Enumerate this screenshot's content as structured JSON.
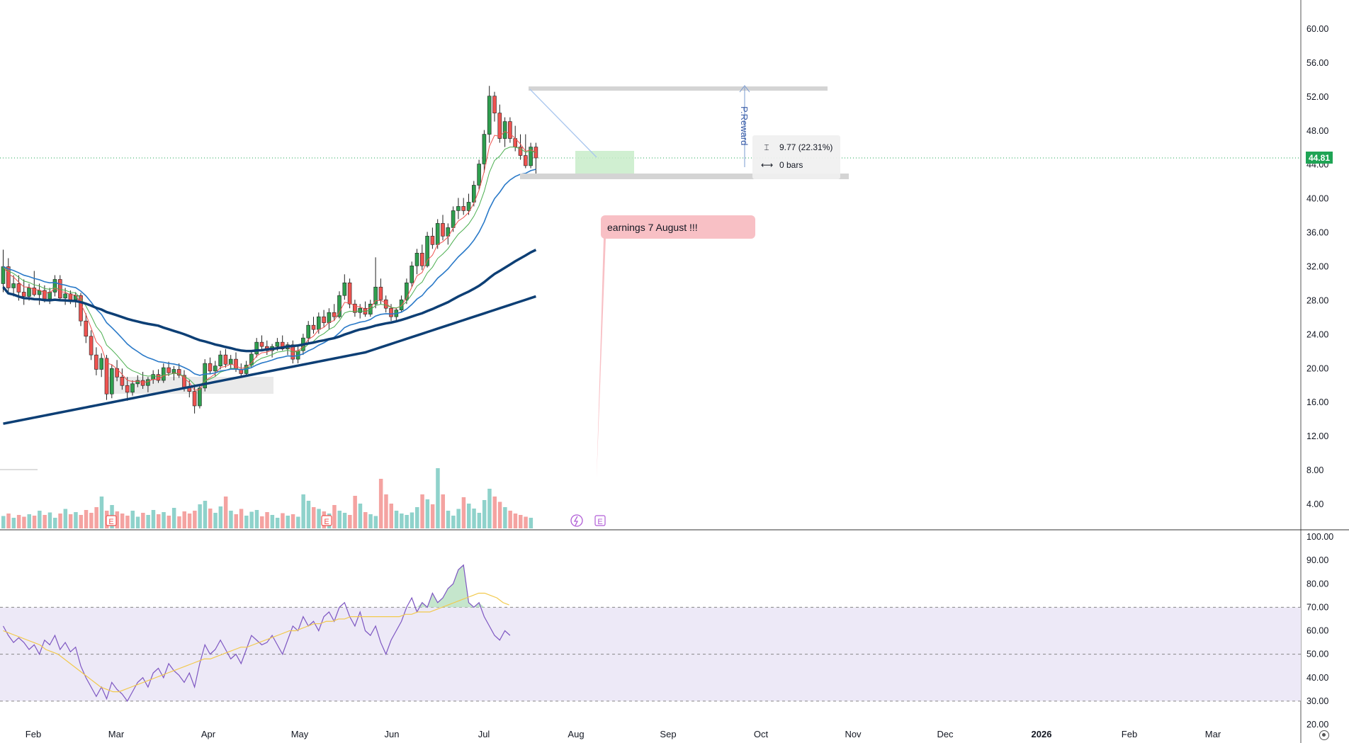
{
  "price_axis": {
    "labels": [
      "60.00",
      "56.00",
      "52.00",
      "48.00",
      "44.00",
      "40.00",
      "36.00",
      "32.00",
      "28.00",
      "24.00",
      "20.00",
      "16.00",
      "12.00",
      "8.00",
      "4.00"
    ],
    "values": [
      60,
      56,
      52,
      48,
      44,
      40,
      36,
      32,
      28,
      24,
      20,
      16,
      12,
      8,
      4
    ]
  },
  "rsi_axis": {
    "labels": [
      "100.00",
      "90.00",
      "80.00",
      "70.00",
      "60.00",
      "50.00",
      "40.00",
      "30.00",
      "20.00"
    ],
    "values": [
      100,
      90,
      80,
      70,
      60,
      50,
      40,
      30,
      20
    ]
  },
  "time_axis": {
    "labels": [
      "Feb",
      "Mar",
      "Apr",
      "May",
      "Jun",
      "Jul",
      "Aug",
      "Sep",
      "Oct",
      "Nov",
      "Dec",
      "2026",
      "Feb",
      "Mar"
    ]
  },
  "last_price": {
    "label": "44.81",
    "value": 44.81,
    "color": "#1fa455"
  },
  "measure_tool": {
    "price_change": "9.77 (22.31%)",
    "bars": "0 bars",
    "price_icon": "price-range-icon",
    "bars_icon": "bar-range-icon"
  },
  "reward_label": "P.Reward",
  "note": {
    "text": "earnings 7 August !!!",
    "color": "#f8c0c5"
  },
  "events": {
    "earnings_marker": "E",
    "dividend_icon": "lightning-icon"
  },
  "colors": {
    "up": "#26a69a",
    "up_body": "#2e9e4e",
    "down": "#ef5350",
    "ema_fast": "#4caf50",
    "ema_mid": "#2979c8",
    "sma50": "#0d3f75",
    "sma200": "#0d3f75",
    "rsi": "#7e57c2",
    "rsi_ma": "#f2c94c",
    "rsi_band": "#ede9f7"
  },
  "chart_data": {
    "type": "candlestick",
    "price_series": [
      {
        "open": 30,
        "high": 34,
        "low": 29,
        "close": 32
      },
      {
        "open": 32,
        "high": 33,
        "low": 29,
        "close": 29.5
      },
      {
        "open": 29.5,
        "high": 31,
        "low": 28.5,
        "close": 30
      },
      {
        "open": 30,
        "high": 31,
        "low": 28,
        "close": 29
      },
      {
        "open": 29,
        "high": 30.5,
        "low": 27.5,
        "close": 28.5
      },
      {
        "open": 28.5,
        "high": 30,
        "low": 28,
        "close": 29.5
      },
      {
        "open": 29.5,
        "high": 31.5,
        "low": 28.5,
        "close": 28.7
      },
      {
        "open": 28.7,
        "high": 30,
        "low": 27.5,
        "close": 29.2
      },
      {
        "open": 29.2,
        "high": 29.8,
        "low": 27.8,
        "close": 28.2
      },
      {
        "open": 28.2,
        "high": 29.5,
        "low": 27.6,
        "close": 29
      },
      {
        "open": 29,
        "high": 31,
        "low": 28.5,
        "close": 30.5
      },
      {
        "open": 30.5,
        "high": 31,
        "low": 28,
        "close": 28.3
      },
      {
        "open": 28.3,
        "high": 29.5,
        "low": 27.5,
        "close": 28.8
      },
      {
        "open": 28.8,
        "high": 29.2,
        "low": 27.6,
        "close": 28.1
      },
      {
        "open": 28.1,
        "high": 29,
        "low": 27.2,
        "close": 28.6
      },
      {
        "open": 28.6,
        "high": 28.9,
        "low": 25,
        "close": 25.6
      },
      {
        "open": 25.6,
        "high": 26.5,
        "low": 23,
        "close": 23.8
      },
      {
        "open": 23.8,
        "high": 24.5,
        "low": 21,
        "close": 21.6
      },
      {
        "open": 21.6,
        "high": 22.5,
        "low": 19.2,
        "close": 19.9
      },
      {
        "open": 19.9,
        "high": 21.8,
        "low": 19,
        "close": 21.2
      },
      {
        "open": 21.2,
        "high": 21.6,
        "low": 16.3,
        "close": 17
      },
      {
        "open": 17,
        "high": 20.5,
        "low": 16.5,
        "close": 20
      },
      {
        "open": 20,
        "high": 21,
        "low": 18.5,
        "close": 19
      },
      {
        "open": 19,
        "high": 20,
        "low": 17.5,
        "close": 18
      },
      {
        "open": 18,
        "high": 19,
        "low": 16.2,
        "close": 17.2
      },
      {
        "open": 17.2,
        "high": 18.6,
        "low": 16.8,
        "close": 18.2
      },
      {
        "open": 18.2,
        "high": 19.2,
        "low": 17.8,
        "close": 18.6
      },
      {
        "open": 18.6,
        "high": 19.6,
        "low": 17.6,
        "close": 18
      },
      {
        "open": 18,
        "high": 19,
        "low": 17.2,
        "close": 18.7
      },
      {
        "open": 18.7,
        "high": 19.8,
        "low": 18.2,
        "close": 19.3
      },
      {
        "open": 19.3,
        "high": 19.9,
        "low": 18.3,
        "close": 18.6
      },
      {
        "open": 18.6,
        "high": 20.6,
        "low": 18.3,
        "close": 20.1
      },
      {
        "open": 20.1,
        "high": 20.8,
        "low": 19.1,
        "close": 19.5
      },
      {
        "open": 19.5,
        "high": 20.3,
        "low": 18.6,
        "close": 19.9
      },
      {
        "open": 19.9,
        "high": 20.6,
        "low": 18.9,
        "close": 19.2
      },
      {
        "open": 19.2,
        "high": 19.8,
        "low": 17.3,
        "close": 17.8
      },
      {
        "open": 17.8,
        "high": 18.6,
        "low": 16.6,
        "close": 17.3
      },
      {
        "open": 17.3,
        "high": 17.9,
        "low": 14.7,
        "close": 15.6
      },
      {
        "open": 15.6,
        "high": 18.1,
        "low": 15.3,
        "close": 17.7
      },
      {
        "open": 17.7,
        "high": 21.1,
        "low": 17.3,
        "close": 20.6
      },
      {
        "open": 20.6,
        "high": 21.3,
        "low": 19.3,
        "close": 19.7
      },
      {
        "open": 19.7,
        "high": 20.9,
        "low": 19.1,
        "close": 20.3
      },
      {
        "open": 20.3,
        "high": 22.1,
        "low": 19.9,
        "close": 21.6
      },
      {
        "open": 21.6,
        "high": 22.3,
        "low": 20.1,
        "close": 20.5
      },
      {
        "open": 20.5,
        "high": 21.6,
        "low": 19.9,
        "close": 21.1
      },
      {
        "open": 21.1,
        "high": 21.9,
        "low": 19.6,
        "close": 19.9
      },
      {
        "open": 19.9,
        "high": 20.6,
        "low": 18.9,
        "close": 19.4
      },
      {
        "open": 19.4,
        "high": 20.9,
        "low": 19.1,
        "close": 20.4
      },
      {
        "open": 20.4,
        "high": 22.1,
        "low": 20.1,
        "close": 21.7
      },
      {
        "open": 21.7,
        "high": 23.6,
        "low": 21.3,
        "close": 23.1
      },
      {
        "open": 23.1,
        "high": 23.9,
        "low": 22.1,
        "close": 22.6
      },
      {
        "open": 22.6,
        "high": 23.3,
        "low": 21.6,
        "close": 22.1
      },
      {
        "open": 22.1,
        "high": 22.9,
        "low": 21.3,
        "close": 22.6
      },
      {
        "open": 22.6,
        "high": 23.6,
        "low": 22.1,
        "close": 23.1
      },
      {
        "open": 23.1,
        "high": 23.9,
        "low": 22.1,
        "close": 22.3
      },
      {
        "open": 22.3,
        "high": 23.1,
        "low": 21.6,
        "close": 22.8
      },
      {
        "open": 22.8,
        "high": 23.3,
        "low": 20.6,
        "close": 21.1
      },
      {
        "open": 21.1,
        "high": 22.6,
        "low": 20.6,
        "close": 22.1
      },
      {
        "open": 22.1,
        "high": 24.1,
        "low": 21.6,
        "close": 23.6
      },
      {
        "open": 23.6,
        "high": 25.6,
        "low": 23.1,
        "close": 25.1
      },
      {
        "open": 25.1,
        "high": 26.1,
        "low": 24.1,
        "close": 24.6
      },
      {
        "open": 24.6,
        "high": 26.6,
        "low": 24.1,
        "close": 26.1
      },
      {
        "open": 26.1,
        "high": 26.9,
        "low": 24.9,
        "close": 25.4
      },
      {
        "open": 25.4,
        "high": 27.1,
        "low": 24.6,
        "close": 26.6
      },
      {
        "open": 26.6,
        "high": 27.6,
        "low": 25.6,
        "close": 26.1
      },
      {
        "open": 26.1,
        "high": 29.1,
        "low": 25.9,
        "close": 28.6
      },
      {
        "open": 28.6,
        "high": 31.1,
        "low": 28.1,
        "close": 30.1
      },
      {
        "open": 30.1,
        "high": 30.6,
        "low": 27.1,
        "close": 27.6
      },
      {
        "open": 27.6,
        "high": 28.1,
        "low": 26.1,
        "close": 26.6
      },
      {
        "open": 26.6,
        "high": 27.6,
        "low": 25.9,
        "close": 27.1
      },
      {
        "open": 27.1,
        "high": 27.9,
        "low": 26.1,
        "close": 26.4
      },
      {
        "open": 26.4,
        "high": 28.1,
        "low": 26.1,
        "close": 27.6
      },
      {
        "open": 27.6,
        "high": 33.1,
        "low": 27.1,
        "close": 29.6
      },
      {
        "open": 29.6,
        "high": 30.6,
        "low": 27.6,
        "close": 28.1
      },
      {
        "open": 28.1,
        "high": 28.6,
        "low": 26.6,
        "close": 27.1
      },
      {
        "open": 27.1,
        "high": 27.6,
        "low": 25.6,
        "close": 26.1
      },
      {
        "open": 26.1,
        "high": 27.1,
        "low": 25.6,
        "close": 26.9
      },
      {
        "open": 26.9,
        "high": 28.6,
        "low": 26.6,
        "close": 28.1
      },
      {
        "open": 28.1,
        "high": 30.6,
        "low": 27.6,
        "close": 30.1
      },
      {
        "open": 30.1,
        "high": 32.6,
        "low": 29.6,
        "close": 32.1
      },
      {
        "open": 32.1,
        "high": 34.1,
        "low": 31.1,
        "close": 33.6
      },
      {
        "open": 33.6,
        "high": 34.6,
        "low": 31.6,
        "close": 32.1
      },
      {
        "open": 32.1,
        "high": 36.1,
        "low": 31.9,
        "close": 35.6
      },
      {
        "open": 35.6,
        "high": 36.6,
        "low": 34.1,
        "close": 34.6
      },
      {
        "open": 34.6,
        "high": 37.6,
        "low": 34.1,
        "close": 37.1
      },
      {
        "open": 37.1,
        "high": 38.1,
        "low": 35.1,
        "close": 35.6
      },
      {
        "open": 35.6,
        "high": 37.1,
        "low": 34.6,
        "close": 36.6
      },
      {
        "open": 36.6,
        "high": 39.1,
        "low": 36.1,
        "close": 38.6
      },
      {
        "open": 38.6,
        "high": 40.1,
        "low": 37.6,
        "close": 39.1
      },
      {
        "open": 39.1,
        "high": 40.1,
        "low": 38.1,
        "close": 38.6
      },
      {
        "open": 38.6,
        "high": 40.6,
        "low": 38.1,
        "close": 39.6
      },
      {
        "open": 39.6,
        "high": 42.1,
        "low": 39.1,
        "close": 41.6
      },
      {
        "open": 41.6,
        "high": 44.6,
        "low": 41.1,
        "close": 44.1
      },
      {
        "open": 44.1,
        "high": 48.1,
        "low": 43.1,
        "close": 47.6
      },
      {
        "open": 47.6,
        "high": 53.3,
        "low": 46.6,
        "close": 52.1
      },
      {
        "open": 52.1,
        "high": 52.6,
        "low": 49.1,
        "close": 50.1
      },
      {
        "open": 50.1,
        "high": 51.1,
        "low": 46.6,
        "close": 47.1
      },
      {
        "open": 47.1,
        "high": 49.6,
        "low": 46.1,
        "close": 49.1
      },
      {
        "open": 49.1,
        "high": 49.6,
        "low": 46.6,
        "close": 47.1
      },
      {
        "open": 47.1,
        "high": 48.6,
        "low": 45.6,
        "close": 46.1
      },
      {
        "open": 46.1,
        "high": 47.6,
        "low": 44.6,
        "close": 45.1
      },
      {
        "open": 45.1,
        "high": 47.6,
        "low": 43.6,
        "close": 43.9
      },
      {
        "open": 43.9,
        "high": 46.6,
        "low": 43.6,
        "close": 46.1
      },
      {
        "open": 46.1,
        "high": 46.6,
        "low": 42.6,
        "close": 44.81
      }
    ],
    "volume": [
      0.35,
      0.42,
      0.3,
      0.38,
      0.33,
      0.4,
      0.36,
      0.5,
      0.38,
      0.45,
      0.3,
      0.42,
      0.55,
      0.4,
      0.46,
      0.38,
      0.52,
      0.44,
      0.6,
      0.9,
      0.5,
      0.66,
      0.48,
      0.42,
      0.36,
      0.5,
      0.33,
      0.44,
      0.38,
      0.52,
      0.4,
      0.46,
      0.36,
      0.58,
      0.34,
      0.48,
      0.42,
      0.5,
      0.68,
      0.78,
      0.56,
      0.44,
      0.62,
      0.9,
      0.5,
      0.4,
      0.55,
      0.36,
      0.47,
      0.52,
      0.34,
      0.46,
      0.38,
      0.3,
      0.43,
      0.36,
      0.4,
      0.33,
      0.96,
      0.78,
      0.6,
      0.55,
      0.48,
      0.42,
      0.66,
      0.5,
      0.44,
      0.38,
      0.92,
      0.7,
      0.46,
      0.4,
      0.35,
      1.4,
      0.96,
      0.7,
      0.5,
      0.42,
      0.38,
      0.45,
      0.6,
      0.96,
      0.82,
      0.68,
      1.7,
      0.96,
      0.5,
      0.36,
      0.55,
      0.88,
      0.7,
      0.56,
      0.44,
      0.8,
      1.12,
      0.9,
      0.75,
      0.6,
      0.5,
      0.42,
      0.38,
      0.33,
      0.3
    ],
    "rsi": [
      62,
      58,
      55,
      57,
      55,
      52,
      54,
      50,
      56,
      54,
      58,
      52,
      55,
      51,
      53,
      45,
      40,
      36,
      32,
      36,
      31,
      38,
      35,
      33,
      30,
      34,
      38,
      40,
      36,
      42,
      44,
      40,
      46,
      43,
      41,
      38,
      42,
      36,
      46,
      54,
      50,
      52,
      56,
      52,
      48,
      50,
      46,
      52,
      58,
      56,
      54,
      55,
      58,
      54,
      50,
      56,
      62,
      60,
      66,
      62,
      64,
      60,
      66,
      68,
      64,
      70,
      72,
      66,
      62,
      68,
      60,
      58,
      62,
      55,
      50,
      56,
      60,
      64,
      70,
      74,
      68,
      72,
      70,
      76,
      72,
      74,
      78,
      80,
      86,
      88,
      72,
      70,
      72,
      66,
      62,
      58,
      56,
      60,
      58
    ],
    "rsi_ma": [
      60,
      59,
      58,
      57,
      56,
      55,
      54,
      52,
      51,
      50,
      48,
      46,
      44,
      42,
      40,
      38,
      36,
      35,
      34,
      34,
      35,
      36,
      37,
      38,
      39,
      40,
      41,
      42,
      43,
      44,
      45,
      46,
      47,
      48,
      48,
      49,
      50,
      51,
      52,
      53,
      53,
      54,
      55,
      56,
      57,
      58,
      59,
      60,
      60,
      61,
      62,
      63,
      63,
      64,
      64,
      65,
      65,
      66,
      66,
      66,
      66,
      66,
      66,
      66,
      66,
      66,
      67,
      67,
      68,
      68,
      68,
      69,
      70,
      71,
      72,
      73,
      74,
      75,
      76,
      76,
      75,
      74,
      72,
      71
    ]
  }
}
